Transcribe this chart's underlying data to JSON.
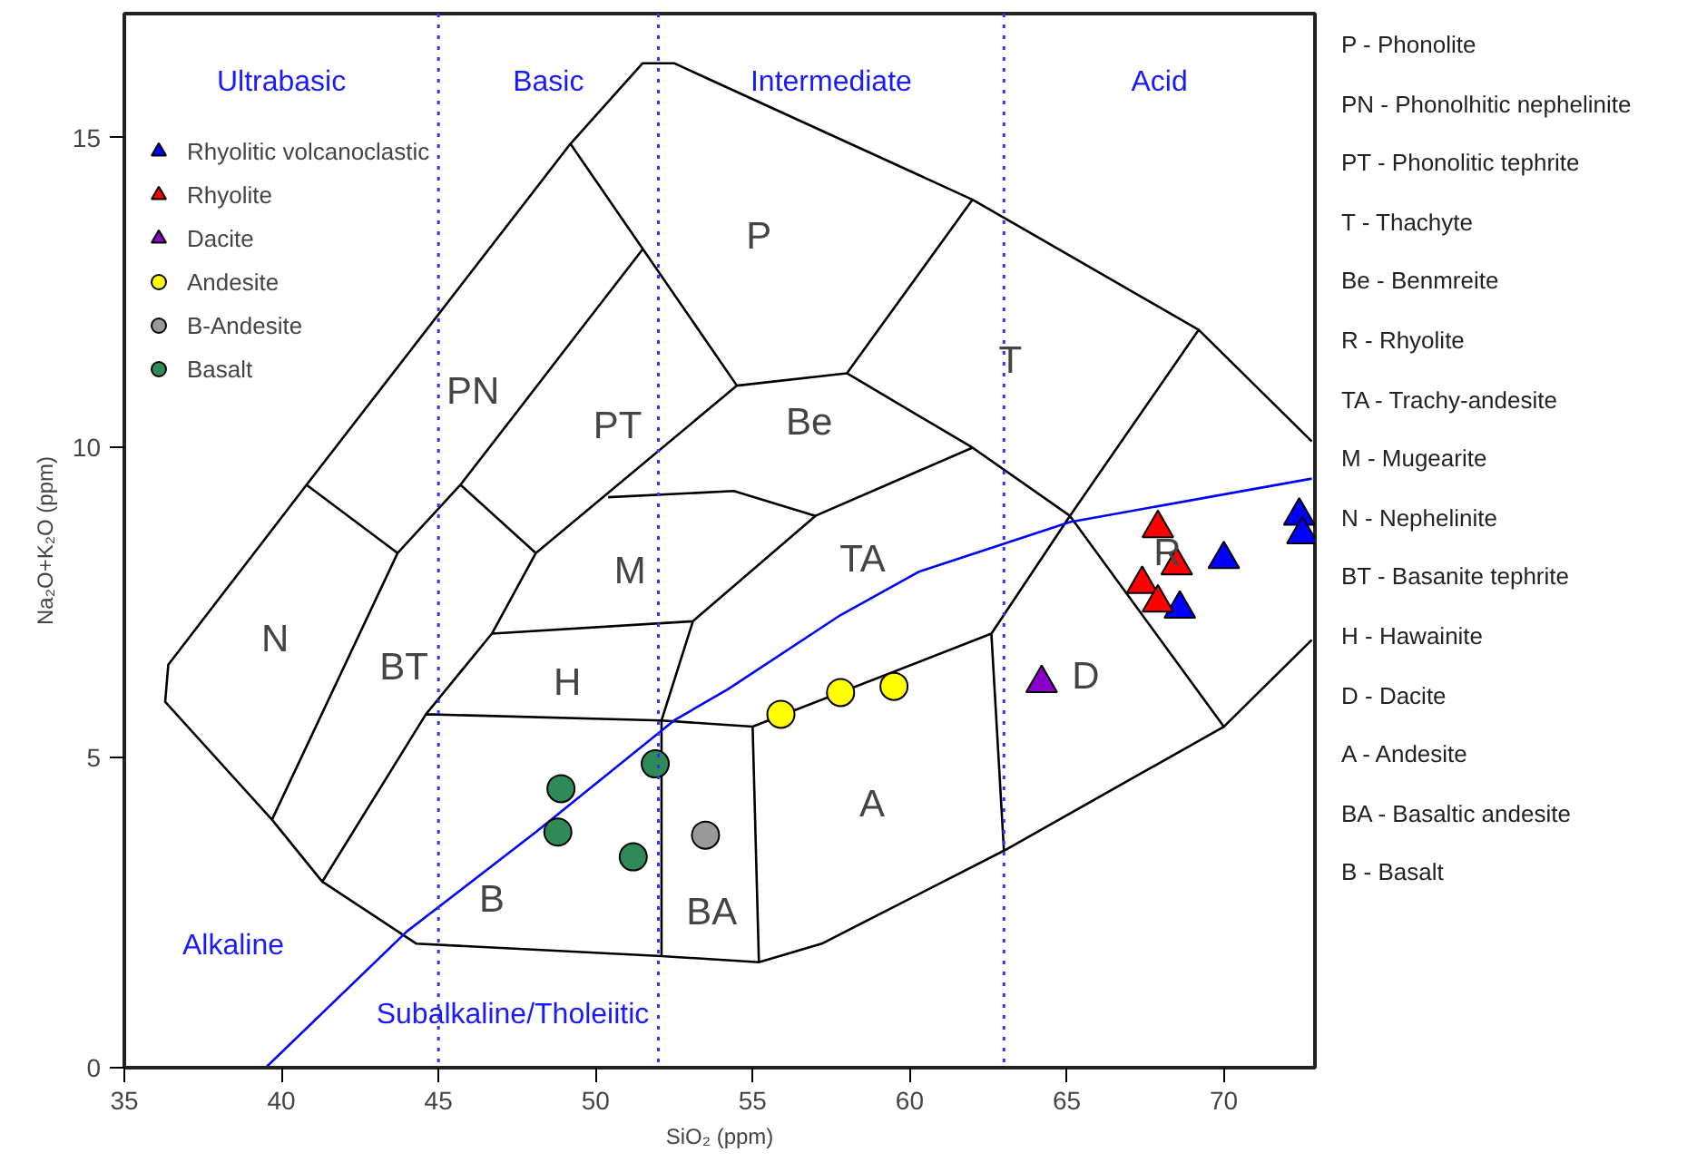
{
  "chart_data": {
    "type": "scatter",
    "xlabel": "SiO₂ (ppm)",
    "ylabel": "Na₂O+K₂O (ppm)",
    "xlim": [
      35,
      72.9
    ],
    "ylim": [
      0,
      17
    ],
    "xticks": [
      35,
      40,
      45,
      50,
      55,
      60,
      65,
      70
    ],
    "yticks": [
      0,
      5,
      10,
      15
    ],
    "grid": false,
    "legend": "top left",
    "series": [
      {
        "type": "line",
        "color": "#000000",
        "marker": "none",
        "x": [
          40.8,
          36.4,
          36.3,
          39.7,
          41.3,
          44.3,
          52.1,
          55.2,
          57.2,
          63.0,
          70.0,
          72.8,
          null,
          40.8,
          49.2,
          51.5,
          52.5,
          62.0,
          69.2,
          72.8,
          null,
          40.8,
          43.7,
          39.7,
          null,
          43.7,
          45.7,
          51.5,
          null,
          49.2,
          54.5,
          null,
          45.7,
          48.1,
          54.5,
          null,
          48.1,
          46.7,
          44.6,
          41.3,
          null,
          62.0,
          58.0,
          54.5,
          null,
          50.4,
          54.4,
          57.0,
          62.0,
          null,
          58.0,
          62.0,
          65.1,
          70.0,
          null,
          69.2,
          65.1,
          62.6,
          63.0,
          null,
          62.6,
          55.0,
          52.1,
          44.6,
          null,
          55.0,
          55.2,
          null,
          52.1,
          52.1,
          null,
          46.7,
          53.1,
          57.0,
          null,
          53.1,
          52.1
        ],
        "values": [
          9.4,
          6.5,
          5.9,
          4.0,
          3.0,
          2.0,
          1.8,
          1.7,
          2.0,
          3.5,
          5.5,
          6.9,
          null,
          9.4,
          14.9,
          16.2,
          16.2,
          14.0,
          11.9,
          10.1,
          null,
          9.4,
          8.3,
          4.0,
          null,
          8.3,
          9.4,
          13.2,
          null,
          14.9,
          11.0,
          null,
          9.4,
          8.3,
          11.0,
          null,
          8.3,
          7.0,
          5.7,
          3.0,
          null,
          14.0,
          11.2,
          11.0,
          null,
          9.2,
          9.3,
          8.9,
          10.0,
          null,
          11.2,
          10.0,
          8.9,
          5.5,
          null,
          11.9,
          8.9,
          7.0,
          3.5,
          null,
          7.0,
          5.5,
          5.6,
          5.7,
          null,
          5.5,
          1.7,
          null,
          5.6,
          1.8,
          null,
          7.0,
          7.2,
          8.9,
          null,
          7.2,
          5.6
        ]
      },
      {
        "type": "line",
        "color": "#0000ff",
        "marker": "none",
        "x": [
          39.5,
          44.0,
          48.1,
          52.5,
          54.2,
          57.8,
          60.3,
          65.1,
          72.8
        ],
        "values": [
          0,
          2.2,
          3.8,
          5.6,
          6.1,
          7.3,
          8.0,
          8.8,
          9.5
        ]
      },
      {
        "name": "Rhyolitic volcanoclastic",
        "color": "#0000ff",
        "marker": "triangle",
        "x": [
          72.4,
          72.5,
          70.0,
          68.6
        ],
        "values": [
          8.9,
          8.6,
          8.2,
          7.4
        ]
      },
      {
        "name": "Rhyolite",
        "color": "#ff0000",
        "marker": "triangle",
        "x": [
          67.9,
          68.5,
          67.4,
          67.9
        ],
        "values": [
          8.7,
          8.1,
          7.8,
          7.5
        ]
      },
      {
        "name": "Dacite",
        "color": "#8b00c8",
        "marker": "triangle",
        "x": [
          64.2
        ],
        "values": [
          6.2
        ]
      },
      {
        "name": "Andesite",
        "color": "#ffff00",
        "marker": "circle",
        "x": [
          55.9,
          57.8,
          59.5
        ],
        "values": [
          5.7,
          6.05,
          6.15
        ]
      },
      {
        "name": "B-Andesite",
        "color": "#999999",
        "marker": "circle",
        "x": [
          53.5
        ],
        "values": [
          3.75
        ]
      },
      {
        "name": "Basalt",
        "color": "#2e8b57",
        "marker": "circle",
        "x": [
          48.9,
          48.8,
          51.2,
          51.9
        ],
        "values": [
          4.5,
          3.8,
          3.4,
          4.9
        ]
      }
    ],
    "ref_lines": [
      {
        "axis": "x",
        "value": 45,
        "color": "#3333ff",
        "line_style": "dotted"
      },
      {
        "axis": "x",
        "value": 52,
        "color": "#3333ff",
        "line_style": "dotted"
      },
      {
        "axis": "x",
        "value": 63,
        "color": "#3333ff",
        "line_style": "dotted"
      }
    ],
    "annotations": [
      "Ultrabasic",
      "Basic",
      "Intermediate",
      "Acid",
      "P",
      "PN",
      "PT",
      "Be",
      "T",
      "M",
      "TA",
      "R",
      "N",
      "BT",
      "H",
      "D",
      "A",
      "B",
      "BA",
      "Alkaline",
      "Subalkaline/Tholeiitic",
      "P - Phonolite",
      "PN - Phonolhitic nephelinite",
      "PT - Phonolitic tephrite",
      "T - Thachyte",
      "Be - Benmreite",
      "R - Rhyolite",
      "TA - Trachy-andesite",
      "M - Mugearite",
      "N - Nephelinite",
      "BT - Basanite tephrite",
      "H - Hawainite",
      "D - Dacite",
      "A - Andesite",
      "BA - Basaltic andesite",
      "B - Basalt"
    ]
  }
}
